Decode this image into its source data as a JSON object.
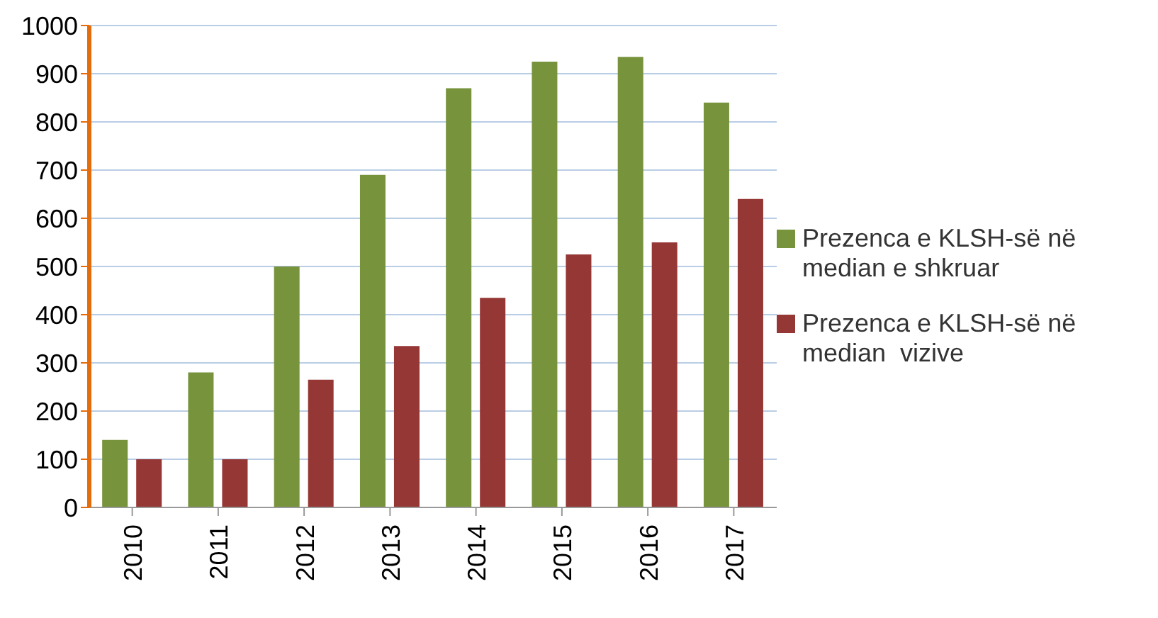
{
  "chart_data": {
    "type": "bar",
    "categories": [
      "2010",
      "2011",
      "2012",
      "2013",
      "2014",
      "2015",
      "2016",
      "2017"
    ],
    "series": [
      {
        "name": "Prezenca e KLSH-së në median e shkruar",
        "color": "#77933c",
        "values": [
          140,
          280,
          500,
          690,
          870,
          925,
          935,
          840
        ]
      },
      {
        "name": "Prezenca e KLSH-së në median  vizive",
        "color": "#953735",
        "values": [
          100,
          100,
          265,
          335,
          435,
          525,
          550,
          640
        ]
      }
    ],
    "ylim": [
      0,
      1000
    ],
    "yticks": [
      0,
      100,
      200,
      300,
      400,
      500,
      600,
      700,
      800,
      900,
      1000
    ],
    "grid": "y",
    "legend": "right"
  }
}
